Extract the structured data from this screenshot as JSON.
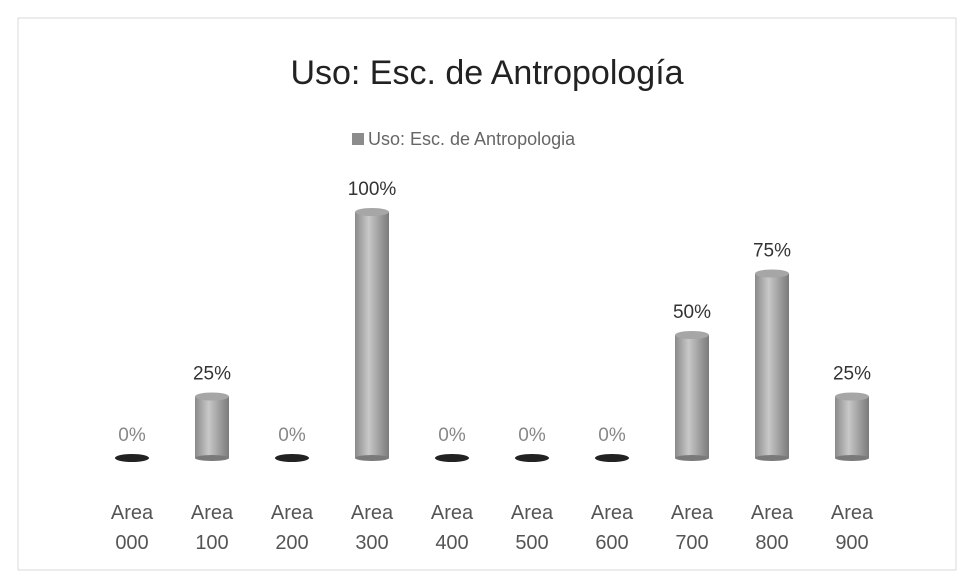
{
  "chart_data": {
    "type": "bar",
    "title": "Uso: Esc. de Antropología",
    "legend": "Uso: Esc. de Antropologia",
    "categories": [
      "Area 000",
      "Area 100",
      "Area 200",
      "Area 300",
      "Area 400",
      "Area 500",
      "Area 600",
      "Area 700",
      "Area 800",
      "Area 900"
    ],
    "values": [
      0,
      25,
      0,
      100,
      0,
      0,
      0,
      50,
      75,
      25
    ],
    "value_labels": [
      "0%",
      "25%",
      "0%",
      "100%",
      "0%",
      "0%",
      "0%",
      "50%",
      "75%",
      "25%"
    ],
    "color": "#a6a6a6"
  }
}
